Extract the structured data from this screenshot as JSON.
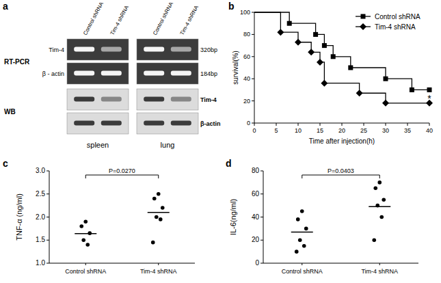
{
  "blot": {
    "panel": "a",
    "lanes": [
      "Control shRNA",
      "Tim-4 shRNA"
    ],
    "tissues": [
      "spleen",
      "lung"
    ],
    "methods": [
      {
        "label": "RT-PCR",
        "rows": [
          {
            "name": "Tim-4",
            "size": "320bp"
          },
          {
            "name": "β - actin",
            "size": "184bp"
          }
        ]
      },
      {
        "label": "WB",
        "rows": [
          {
            "name": "Tim-4"
          },
          {
            "name": "β-actin"
          }
        ]
      }
    ]
  },
  "chart_data": [
    {
      "panel": "b",
      "type": "line",
      "line_style": "step",
      "xlabel": "Time after injection(h)",
      "ylabel": "survival(%)",
      "xlim": [
        0,
        40
      ],
      "ylim": [
        0,
        100
      ],
      "xticks": [
        0,
        5,
        10,
        15,
        20,
        25,
        30,
        35,
        40
      ],
      "yticks": [
        0,
        20,
        40,
        60,
        80,
        100
      ],
      "legend": "upper right",
      "series": [
        {
          "name": "Control shRNA",
          "color": "#000000",
          "marker": "square",
          "x": [
            0,
            8,
            14,
            16,
            18,
            22,
            30,
            36,
            40
          ],
          "values": [
            100,
            90,
            80,
            70,
            60,
            50,
            40,
            30,
            30
          ]
        },
        {
          "name": "Tim-4 shRNA",
          "color": "#000000",
          "marker": "diamond",
          "x": [
            0,
            6,
            10,
            13,
            15,
            16,
            24,
            30,
            40
          ],
          "values": [
            100,
            82,
            73,
            64,
            55,
            36,
            27,
            18,
            18
          ]
        }
      ],
      "annotations": [
        {
          "text": "*",
          "x": 40,
          "y": 23
        }
      ]
    },
    {
      "panel": "c",
      "type": "scatter",
      "ylabel": "TNF-α (ng/ml)",
      "categories": [
        "Control shRNA",
        "Tim-4 shRNA"
      ],
      "values": [
        [
          1.9,
          1.8,
          1.65,
          1.5,
          1.4
        ],
        [
          2.5,
          2.4,
          2.2,
          2.0,
          1.95,
          1.45
        ]
      ],
      "means": [
        1.64,
        2.1
      ],
      "color": "#000000",
      "ylim": [
        1,
        3
      ],
      "yticks": [
        {
          "value": 1,
          "label": "1.0"
        },
        {
          "value": 1.5,
          "label": "1.5"
        },
        {
          "value": 2,
          "label": "2.0"
        },
        {
          "value": 2.5,
          "label": "2.5"
        },
        {
          "value": 3,
          "label": "3.0"
        }
      ],
      "annotations": [
        {
          "text": "P=0.0270"
        }
      ]
    },
    {
      "panel": "d",
      "type": "scatter",
      "ylabel": "IL-6(ng/ml)",
      "categories": [
        "Control shRNA",
        "Tim-4 shRNA"
      ],
      "values": [
        [
          45,
          38,
          30,
          20,
          15,
          10
        ],
        [
          70,
          65,
          55,
          50,
          40,
          20
        ]
      ],
      "means": [
        27,
        49
      ],
      "color": "#000000",
      "ylim": [
        0,
        80
      ],
      "yticks": [
        0,
        20,
        40,
        60,
        80
      ],
      "annotations": [
        {
          "text": "P=0.0403"
        }
      ]
    }
  ]
}
